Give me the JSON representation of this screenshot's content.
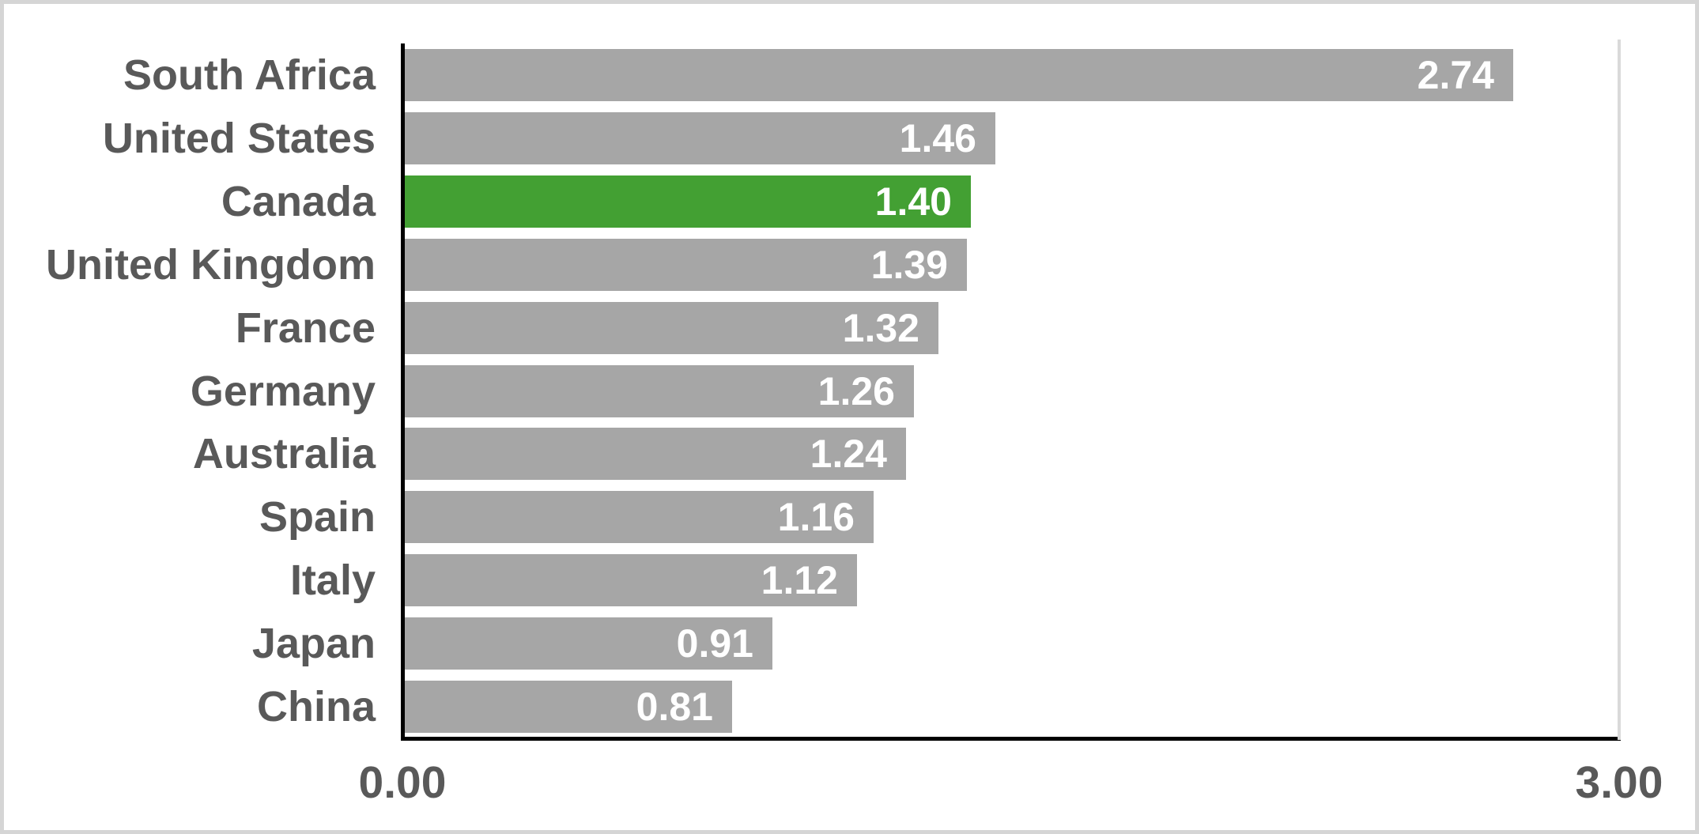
{
  "chart_data": {
    "type": "bar",
    "orientation": "horizontal",
    "categories": [
      "South Africa",
      "United States",
      "Canada",
      "United Kingdom",
      "France",
      "Germany",
      "Australia",
      "Spain",
      "Italy",
      "Japan",
      "China"
    ],
    "values": [
      2.74,
      1.46,
      1.4,
      1.39,
      1.32,
      1.26,
      1.24,
      1.16,
      1.12,
      0.91,
      0.81
    ],
    "value_label_decimals": 2,
    "highlight_category": "Canada",
    "xlim": [
      0,
      3
    ],
    "x_ticks": [
      "0.00",
      "3.00"
    ],
    "gridlines": "none",
    "legend": "none"
  },
  "colors": {
    "bar_default": "#A6A6A6",
    "bar_highlight": "#43A033",
    "category_label": "#595959",
    "value_label": "#FFFFFF",
    "tick_label": "#595959",
    "axis": "#000000",
    "plot_right_border": "#D9D9D9",
    "frame_border": "#D5D5D5"
  }
}
